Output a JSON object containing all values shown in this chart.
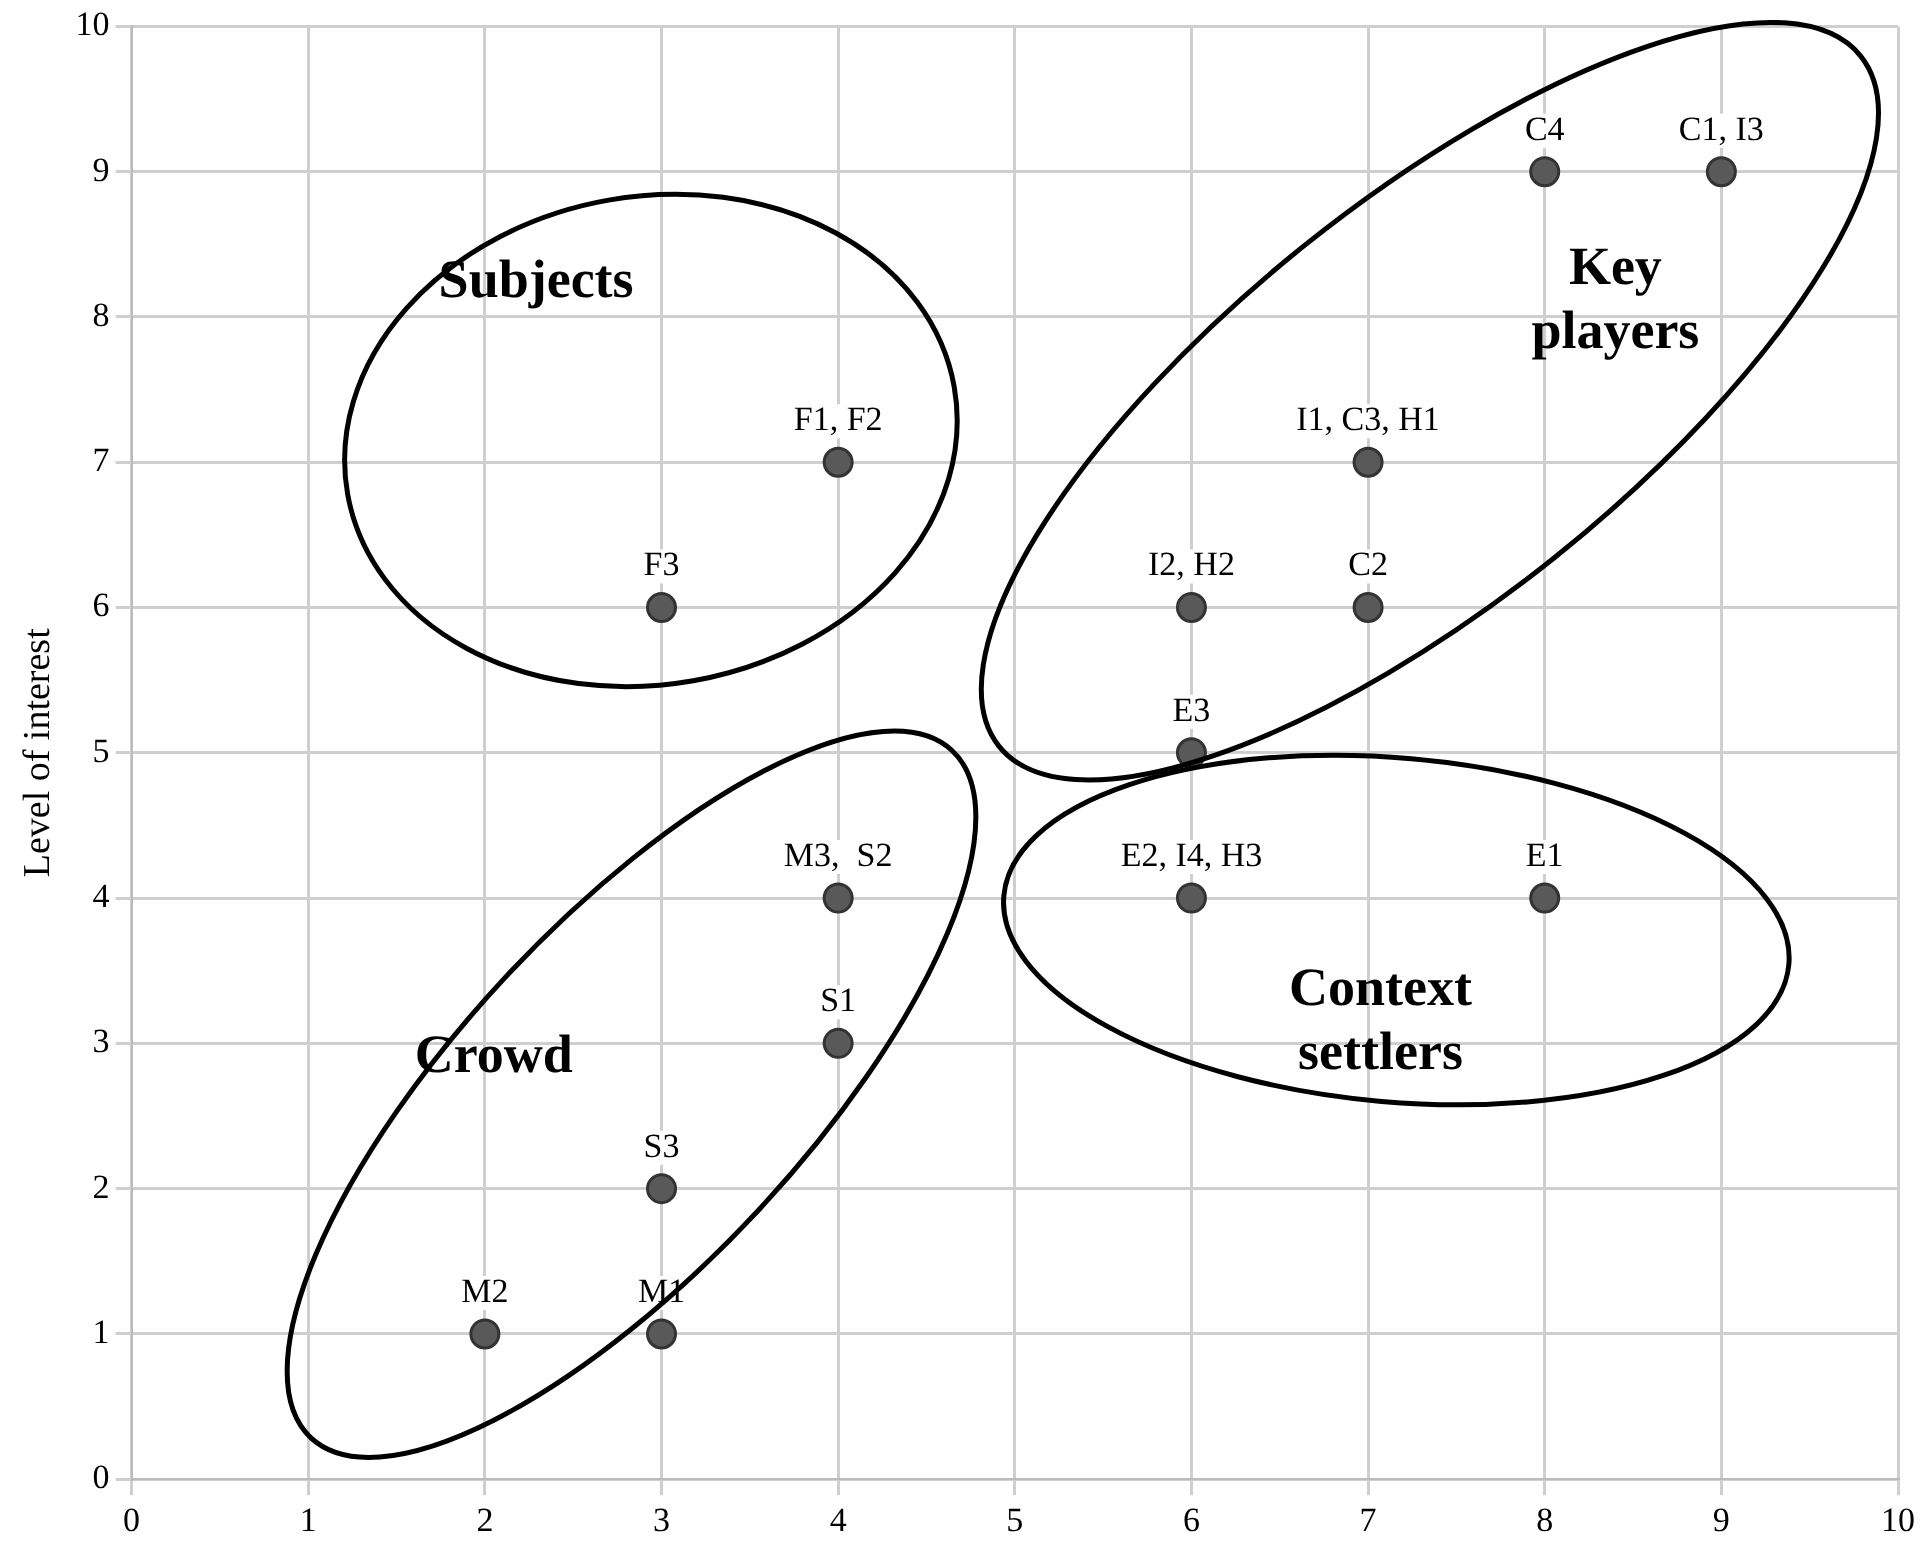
{
  "chart_data": {
    "type": "scatter",
    "ylabel": "Level of interest",
    "x": [
      3,
      4,
      8,
      9,
      7,
      6,
      7,
      6,
      4,
      6,
      8,
      4,
      3,
      2,
      3
    ],
    "values": [
      6,
      7,
      9,
      9,
      7,
      6,
      6,
      5,
      4,
      4,
      4,
      3,
      2,
      1,
      1
    ],
    "value_labels": [
      "F3",
      "F1, F2",
      "C4",
      "C1, I3",
      "I1, C3, H1",
      "I2, H2",
      "C2",
      "E3",
      "M3,  S2",
      "E2, I4, H3",
      "E1",
      "S1",
      "S3",
      "M2",
      "M1"
    ],
    "color": "#595959",
    "marker": "circle",
    "xlim": [
      0,
      10
    ],
    "ylim": [
      0,
      10
    ],
    "xticks": [
      0,
      1,
      2,
      3,
      4,
      5,
      6,
      7,
      8,
      9,
      10
    ],
    "yticks": [
      0,
      1,
      2,
      3,
      4,
      5,
      6,
      7,
      8,
      9,
      10
    ],
    "grid": true,
    "annotations": [
      "Subjects",
      "Key players",
      "Context settlers",
      "Crowd"
    ]
  }
}
